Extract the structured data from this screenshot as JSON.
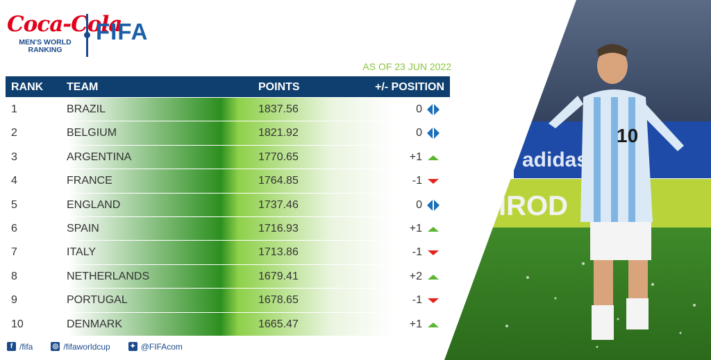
{
  "branding": {
    "sponsor": "Coca-Cola",
    "subtitle_line1": "MEN'S WORLD",
    "subtitle_line2": "RANKING",
    "org": "FIFA"
  },
  "as_of": "AS OF 23 JUN 2022",
  "columns": {
    "rank": "RANK",
    "team": "TEAM",
    "points": "POINTS",
    "change": "+/- POSITION"
  },
  "rows": [
    {
      "rank": "1",
      "team": "BRAZIL",
      "points": "1837.56",
      "change": "0",
      "trend": "same"
    },
    {
      "rank": "2",
      "team": "BELGIUM",
      "points": "1821.92",
      "change": "0",
      "trend": "same"
    },
    {
      "rank": "3",
      "team": "ARGENTINA",
      "points": "1770.65",
      "change": "+1",
      "trend": "up"
    },
    {
      "rank": "4",
      "team": "FRANCE",
      "points": "1764.85",
      "change": "-1",
      "trend": "down"
    },
    {
      "rank": "5",
      "team": "ENGLAND",
      "points": "1737.46",
      "change": "0",
      "trend": "same"
    },
    {
      "rank": "6",
      "team": "SPAIN",
      "points": "1716.93",
      "change": "+1",
      "trend": "up"
    },
    {
      "rank": "7",
      "team": "ITALY",
      "points": "1713.86",
      "change": "-1",
      "trend": "down"
    },
    {
      "rank": "8",
      "team": "NETHERLANDS",
      "points": "1679.41",
      "change": "+2",
      "trend": "up"
    },
    {
      "rank": "9",
      "team": "PORTUGAL",
      "points": "1678.65",
      "change": "-1",
      "trend": "down"
    },
    {
      "rank": "10",
      "team": "DENMARK",
      "points": "1665.47",
      "change": "+1",
      "trend": "up"
    }
  ],
  "social": [
    {
      "icon": "facebook-icon",
      "handle": "/fifa"
    },
    {
      "icon": "instagram-icon",
      "handle": "/fifaworldcup"
    },
    {
      "icon": "twitter-icon",
      "handle": "@FIFAcom"
    }
  ],
  "photo": {
    "jersey_number": "10",
    "board_text_1": "adidas",
    "board_text_2": "IROD"
  },
  "colors": {
    "header": "#0f3f6f",
    "green": "#2c8f1f",
    "up": "#5cb531",
    "down": "#e3241b",
    "same": "#1b6fb8",
    "asof": "#8bc43f"
  }
}
